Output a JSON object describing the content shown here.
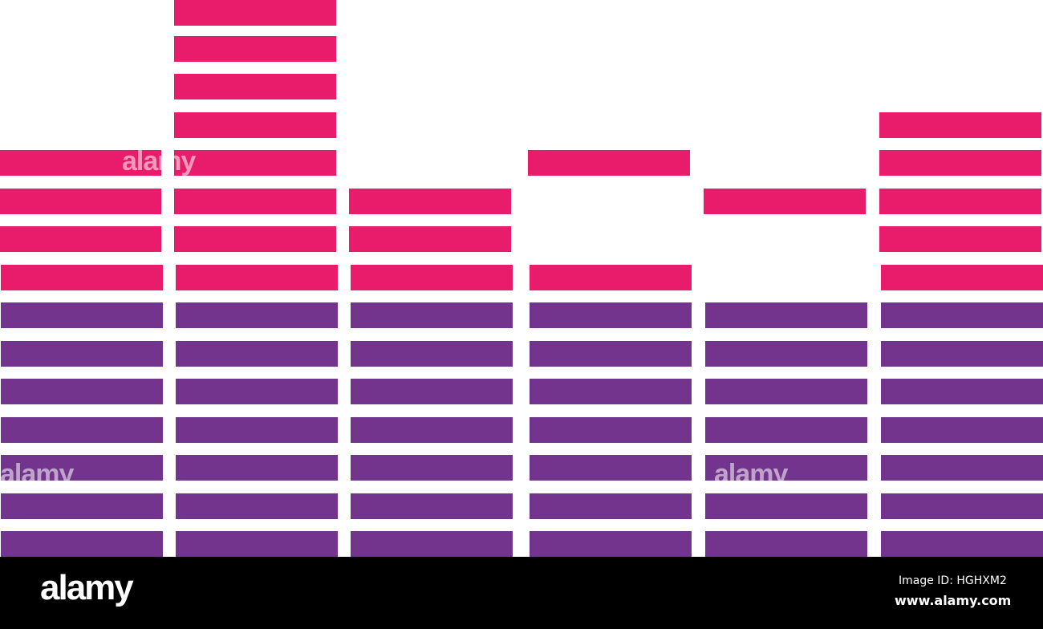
{
  "colors": {
    "upper": "#e81c6b",
    "lower": "#72348c",
    "background": "#ffffff",
    "footer": "#000000"
  },
  "equalizer": {
    "levels_total": 15,
    "upper_from_level": 7,
    "columns": [
      {
        "lit_levels": [
          0,
          1,
          2,
          3,
          4,
          5,
          6,
          7,
          8,
          9,
          10
        ]
      },
      {
        "lit_levels": [
          0,
          1,
          2,
          3,
          4,
          5,
          6,
          7,
          8,
          9,
          10,
          11,
          12,
          13,
          14
        ]
      },
      {
        "lit_levels": [
          0,
          1,
          2,
          3,
          4,
          5,
          6,
          7,
          8,
          9
        ]
      },
      {
        "lit_levels": [
          0,
          1,
          2,
          3,
          4,
          5,
          6,
          7,
          10
        ]
      },
      {
        "lit_levels": [
          0,
          1,
          2,
          3,
          4,
          5,
          6,
          9
        ]
      },
      {
        "lit_levels": [
          0,
          1,
          2,
          3,
          4,
          5,
          6,
          7,
          8,
          9,
          10,
          11
        ]
      }
    ]
  },
  "watermark": {
    "text": "alamy"
  },
  "footer": {
    "logo": "alamy",
    "image_id": "Image ID: HGHXM2",
    "url": "www.alamy.com"
  }
}
